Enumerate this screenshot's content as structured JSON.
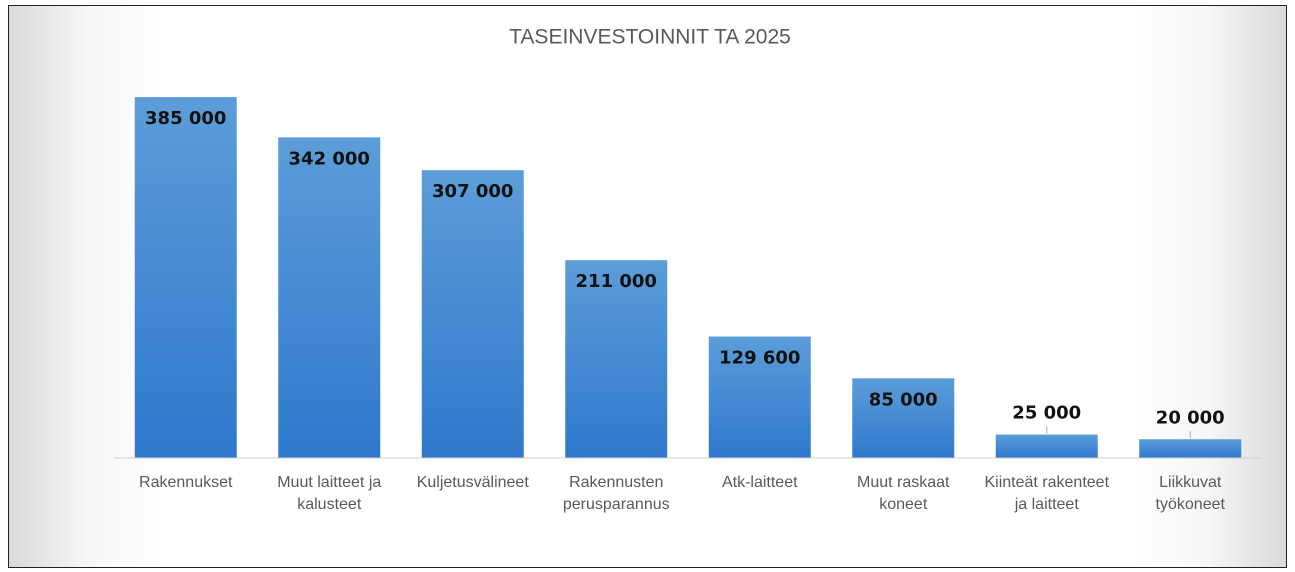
{
  "chart_data": {
    "type": "bar",
    "title": "TASEINVESTOINNIT TA 2025",
    "categories": [
      "Rakennukset",
      "Muut laitteet ja kalusteet",
      "Kuljetusvälineet",
      "Rakennusten perusparannus",
      "Atk-laitteet",
      "Muut raskaat koneet",
      "Kiinteät rakenteet ja laitteet",
      "Liikkuvat työkoneet"
    ],
    "values": [
      385000,
      342000,
      307000,
      211000,
      129600,
      85000,
      25000,
      20000
    ],
    "value_labels": [
      "385 000",
      "342 000",
      "307 000",
      "211 000",
      "129 600",
      "85 000",
      "25 000",
      "20 000"
    ],
    "color": "#4a8fd6",
    "ylim": [
      0,
      400000
    ]
  }
}
